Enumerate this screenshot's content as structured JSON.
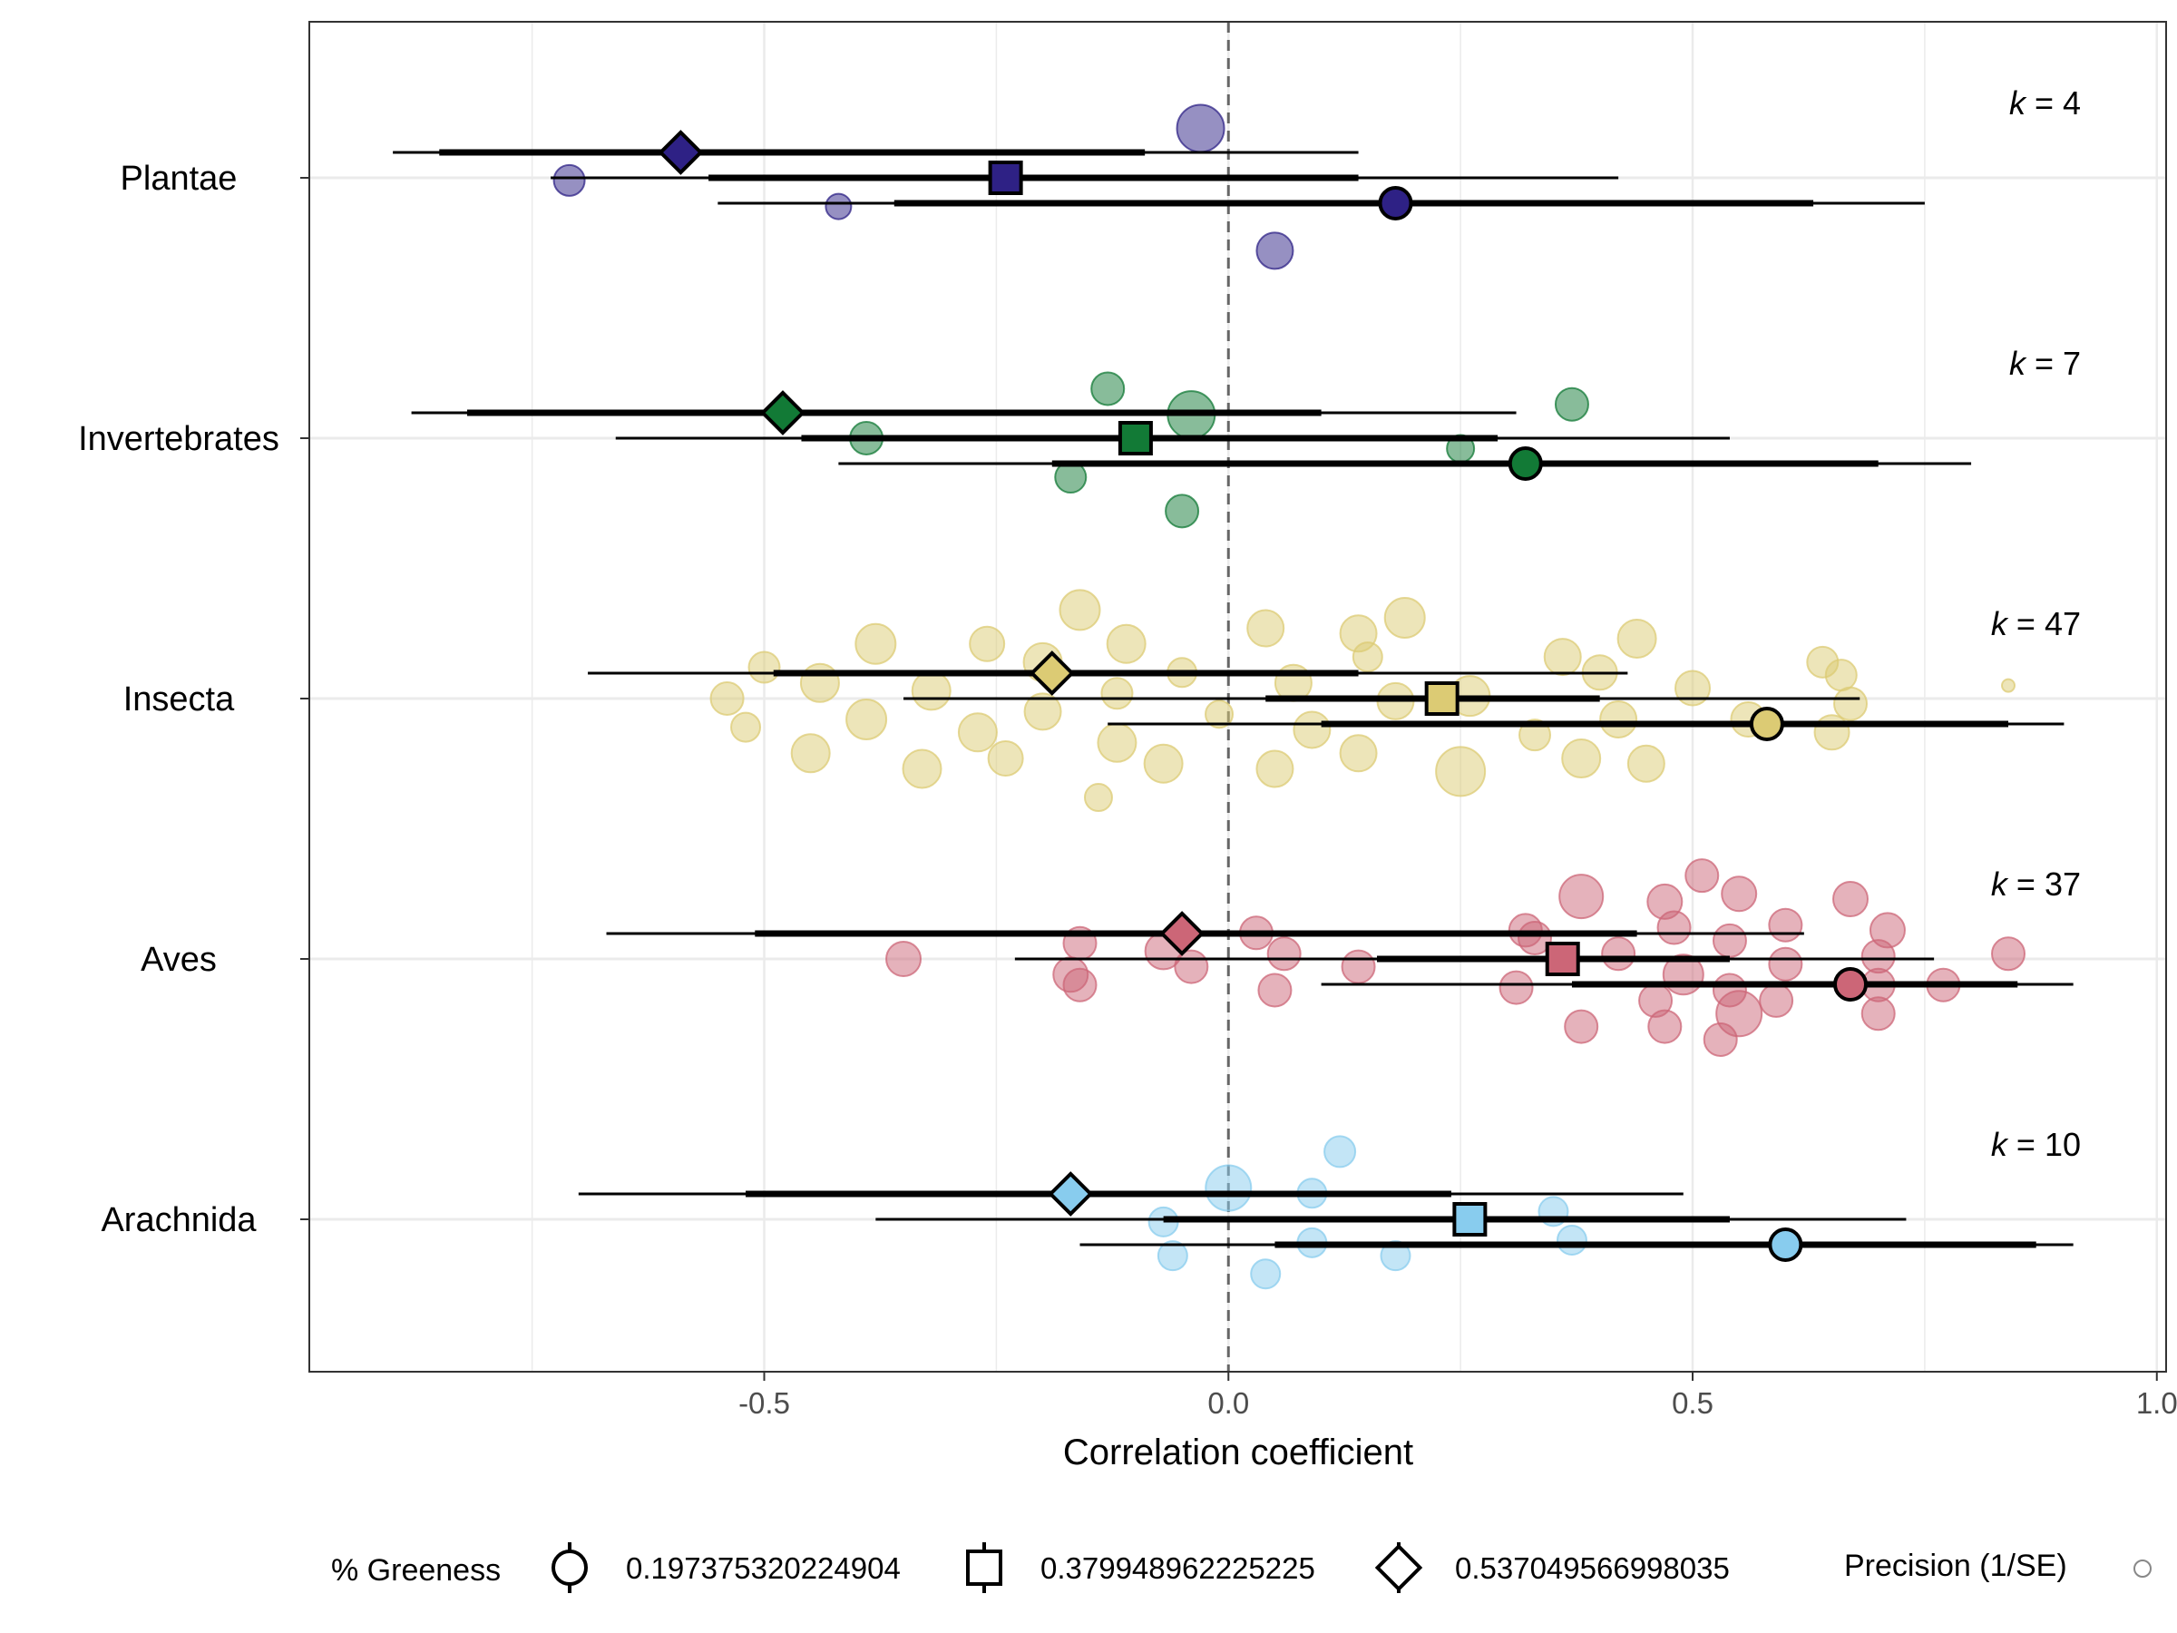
{
  "chart_data": {
    "type": "forest",
    "xlabel": "Correlation coefficient",
    "xlim": [
      -0.99,
      1.01
    ],
    "x_ticks": [
      -0.5,
      0.0,
      0.5,
      1.0
    ],
    "x_tick_labels": [
      "-0.5",
      "0.0",
      "0.5",
      "1.0"
    ],
    "reference_line": 0,
    "grid": true,
    "groups": [
      {
        "name": "Plantae",
        "k_label": "= 4",
        "color": "#2E2185",
        "points": [
          {
            "x": -0.03,
            "offset": 0.19,
            "size": 26
          },
          {
            "x": -0.71,
            "offset": -0.01,
            "size": 17
          },
          {
            "x": -0.42,
            "offset": -0.11,
            "size": 14
          },
          {
            "x": 0.05,
            "offset": -0.28,
            "size": 20
          }
        ],
        "estimates": [
          {
            "level": "0.197375320224904",
            "shape": "circle",
            "x": 0.18,
            "ci95": [
              -0.55,
              0.75
            ],
            "ci_inner": [
              -0.36,
              0.63
            ]
          },
          {
            "level": "0.379948962225225",
            "shape": "square",
            "x": -0.24,
            "ci95": [
              -0.73,
              0.42
            ],
            "ci_inner": [
              -0.56,
              0.14
            ]
          },
          {
            "level": "0.537049566998035",
            "shape": "diamond",
            "x": -0.59,
            "ci95": [
              -0.9,
              0.14
            ],
            "ci_inner": [
              -0.85,
              -0.09
            ]
          }
        ]
      },
      {
        "name": "Invertebrates",
        "k_label": "= 7",
        "color": "#127A36",
        "points": [
          {
            "x": -0.13,
            "offset": 0.19,
            "size": 18
          },
          {
            "x": -0.04,
            "offset": 0.09,
            "size": 26
          },
          {
            "x": 0.37,
            "offset": 0.13,
            "size": 18
          },
          {
            "x": -0.39,
            "offset": 0.0,
            "size": 18
          },
          {
            "x": 0.25,
            "offset": -0.04,
            "size": 15
          },
          {
            "x": -0.17,
            "offset": -0.15,
            "size": 17
          },
          {
            "x": -0.05,
            "offset": -0.28,
            "size": 18
          }
        ],
        "estimates": [
          {
            "level": "0.197375320224904",
            "shape": "circle",
            "x": 0.32,
            "ci95": [
              -0.42,
              0.8
            ],
            "ci_inner": [
              -0.19,
              0.7
            ]
          },
          {
            "level": "0.379948962225225",
            "shape": "square",
            "x": -0.1,
            "ci95": [
              -0.66,
              0.54
            ],
            "ci_inner": [
              -0.46,
              0.29
            ]
          },
          {
            "level": "0.537049566998035",
            "shape": "diamond",
            "x": -0.48,
            "ci95": [
              -0.88,
              0.31
            ],
            "ci_inner": [
              -0.82,
              0.1
            ]
          }
        ]
      },
      {
        "name": "Insecta",
        "k_label": "= 47",
        "color": "#DCCB74",
        "points": [
          {
            "x": -0.16,
            "offset": 0.34,
            "size": 22
          },
          {
            "x": 0.04,
            "offset": 0.27,
            "size": 20
          },
          {
            "x": 0.19,
            "offset": 0.31,
            "size": 22
          },
          {
            "x": -0.38,
            "offset": 0.21,
            "size": 22
          },
          {
            "x": -0.26,
            "offset": 0.21,
            "size": 19
          },
          {
            "x": -0.11,
            "offset": 0.21,
            "size": 21
          },
          {
            "x": 0.14,
            "offset": 0.25,
            "size": 20
          },
          {
            "x": 0.44,
            "offset": 0.23,
            "size": 21
          },
          {
            "x": -0.5,
            "offset": 0.12,
            "size": 17
          },
          {
            "x": -0.2,
            "offset": 0.14,
            "size": 21
          },
          {
            "x": 0.15,
            "offset": 0.16,
            "size": 16
          },
          {
            "x": 0.36,
            "offset": 0.16,
            "size": 20
          },
          {
            "x": -0.05,
            "offset": 0.1,
            "size": 16
          },
          {
            "x": 0.64,
            "offset": 0.14,
            "size": 17
          },
          {
            "x": -0.44,
            "offset": 0.06,
            "size": 21
          },
          {
            "x": -0.32,
            "offset": 0.03,
            "size": 21
          },
          {
            "x": 0.07,
            "offset": 0.06,
            "size": 20
          },
          {
            "x": 0.4,
            "offset": 0.1,
            "size": 19
          },
          {
            "x": 0.66,
            "offset": 0.09,
            "size": 17
          },
          {
            "x": -0.54,
            "offset": 0.0,
            "size": 18
          },
          {
            "x": -0.12,
            "offset": 0.02,
            "size": 17
          },
          {
            "x": 0.18,
            "offset": -0.01,
            "size": 20
          },
          {
            "x": 0.26,
            "offset": 0.01,
            "size": 22
          },
          {
            "x": 0.5,
            "offset": 0.04,
            "size": 19
          },
          {
            "x": 0.67,
            "offset": -0.02,
            "size": 18
          },
          {
            "x": -0.52,
            "offset": -0.11,
            "size": 16
          },
          {
            "x": -0.39,
            "offset": -0.08,
            "size": 22
          },
          {
            "x": -0.2,
            "offset": -0.05,
            "size": 20
          },
          {
            "x": -0.01,
            "offset": -0.06,
            "size": 15
          },
          {
            "x": 0.42,
            "offset": -0.08,
            "size": 20
          },
          {
            "x": 0.56,
            "offset": -0.08,
            "size": 19
          },
          {
            "x": -0.27,
            "offset": -0.13,
            "size": 21
          },
          {
            "x": -0.12,
            "offset": -0.17,
            "size": 21
          },
          {
            "x": 0.09,
            "offset": -0.12,
            "size": 20
          },
          {
            "x": 0.33,
            "offset": -0.14,
            "size": 17
          },
          {
            "x": 0.65,
            "offset": -0.13,
            "size": 19
          },
          {
            "x": -0.45,
            "offset": -0.21,
            "size": 21
          },
          {
            "x": -0.24,
            "offset": -0.23,
            "size": 19
          },
          {
            "x": 0.14,
            "offset": -0.21,
            "size": 20
          },
          {
            "x": 0.38,
            "offset": -0.23,
            "size": 21
          },
          {
            "x": -0.33,
            "offset": -0.27,
            "size": 21
          },
          {
            "x": -0.07,
            "offset": -0.25,
            "size": 21
          },
          {
            "x": 0.05,
            "offset": -0.27,
            "size": 20
          },
          {
            "x": 0.25,
            "offset": -0.28,
            "size": 27
          },
          {
            "x": 0.45,
            "offset": -0.25,
            "size": 20
          },
          {
            "x": -0.14,
            "offset": -0.38,
            "size": 15
          },
          {
            "x": 0.84,
            "offset": 0.05,
            "size": 7
          }
        ],
        "estimates": [
          {
            "level": "0.197375320224904",
            "shape": "circle",
            "x": 0.58,
            "ci95": [
              -0.13,
              0.9
            ],
            "ci_inner": [
              0.1,
              0.84
            ]
          },
          {
            "level": "0.379948962225225",
            "shape": "square",
            "x": 0.23,
            "ci95": [
              -0.35,
              0.68
            ],
            "ci_inner": [
              0.04,
              0.4
            ]
          },
          {
            "level": "0.537049566998035",
            "shape": "diamond",
            "x": -0.19,
            "ci95": [
              -0.69,
              0.43
            ],
            "ci_inner": [
              -0.49,
              0.14
            ]
          }
        ]
      },
      {
        "name": "Aves",
        "k_label": "= 37",
        "color": "#CC6677",
        "points": [
          {
            "x": 0.51,
            "offset": 0.32,
            "size": 18
          },
          {
            "x": 0.38,
            "offset": 0.24,
            "size": 24
          },
          {
            "x": 0.47,
            "offset": 0.22,
            "size": 19
          },
          {
            "x": 0.55,
            "offset": 0.25,
            "size": 19
          },
          {
            "x": 0.67,
            "offset": 0.23,
            "size": 19
          },
          {
            "x": 0.32,
            "offset": 0.11,
            "size": 18
          },
          {
            "x": 0.48,
            "offset": 0.12,
            "size": 18
          },
          {
            "x": 0.6,
            "offset": 0.13,
            "size": 18
          },
          {
            "x": 0.71,
            "offset": 0.11,
            "size": 19
          },
          {
            "x": 0.03,
            "offset": 0.1,
            "size": 18
          },
          {
            "x": -0.16,
            "offset": 0.06,
            "size": 18
          },
          {
            "x": 0.33,
            "offset": 0.08,
            "size": 18
          },
          {
            "x": 0.54,
            "offset": 0.07,
            "size": 18
          },
          {
            "x": -0.35,
            "offset": 0.0,
            "size": 19
          },
          {
            "x": -0.07,
            "offset": 0.03,
            "size": 20
          },
          {
            "x": 0.06,
            "offset": 0.02,
            "size": 18
          },
          {
            "x": 0.42,
            "offset": 0.02,
            "size": 18
          },
          {
            "x": 0.7,
            "offset": 0.01,
            "size": 18
          },
          {
            "x": 0.84,
            "offset": 0.02,
            "size": 18
          },
          {
            "x": -0.04,
            "offset": -0.03,
            "size": 18
          },
          {
            "x": 0.14,
            "offset": -0.03,
            "size": 18
          },
          {
            "x": 0.6,
            "offset": -0.02,
            "size": 18
          },
          {
            "x": -0.17,
            "offset": -0.06,
            "size": 19
          },
          {
            "x": -0.16,
            "offset": -0.1,
            "size": 18
          },
          {
            "x": 0.31,
            "offset": -0.11,
            "size": 18
          },
          {
            "x": 0.49,
            "offset": -0.06,
            "size": 22
          },
          {
            "x": 0.54,
            "offset": -0.12,
            "size": 18
          },
          {
            "x": 0.7,
            "offset": -0.1,
            "size": 18
          },
          {
            "x": 0.77,
            "offset": -0.1,
            "size": 18
          },
          {
            "x": 0.05,
            "offset": -0.12,
            "size": 18
          },
          {
            "x": 0.46,
            "offset": -0.16,
            "size": 18
          },
          {
            "x": 0.55,
            "offset": -0.21,
            "size": 25
          },
          {
            "x": 0.7,
            "offset": -0.21,
            "size": 18
          },
          {
            "x": 0.38,
            "offset": -0.26,
            "size": 18
          },
          {
            "x": 0.47,
            "offset": -0.26,
            "size": 18
          },
          {
            "x": 0.53,
            "offset": -0.31,
            "size": 18
          },
          {
            "x": 0.59,
            "offset": -0.16,
            "size": 18
          }
        ],
        "estimates": [
          {
            "level": "0.197375320224904",
            "shape": "circle",
            "x": 0.67,
            "ci95": [
              0.1,
              0.91
            ],
            "ci_inner": [
              0.37,
              0.85
            ]
          },
          {
            "level": "0.379948962225225",
            "shape": "square",
            "x": 0.36,
            "ci95": [
              -0.23,
              0.76
            ],
            "ci_inner": [
              0.16,
              0.54
            ]
          },
          {
            "level": "0.537049566998035",
            "shape": "diamond",
            "x": -0.05,
            "ci95": [
              -0.67,
              0.62
            ],
            "ci_inner": [
              -0.51,
              0.44
            ]
          }
        ]
      },
      {
        "name": "Arachnida",
        "k_label": "= 10",
        "color": "#88CCEE",
        "points": [
          {
            "x": 0.12,
            "offset": 0.26,
            "size": 17
          },
          {
            "x": 0.0,
            "offset": 0.12,
            "size": 25
          },
          {
            "x": 0.09,
            "offset": 0.1,
            "size": 16
          },
          {
            "x": -0.07,
            "offset": -0.01,
            "size": 16
          },
          {
            "x": 0.35,
            "offset": 0.03,
            "size": 16
          },
          {
            "x": 0.09,
            "offset": -0.09,
            "size": 16
          },
          {
            "x": 0.37,
            "offset": -0.08,
            "size": 16
          },
          {
            "x": -0.06,
            "offset": -0.14,
            "size": 16
          },
          {
            "x": 0.18,
            "offset": -0.14,
            "size": 16
          },
          {
            "x": 0.04,
            "offset": -0.21,
            "size": 16
          }
        ],
        "estimates": [
          {
            "level": "0.197375320224904",
            "shape": "circle",
            "x": 0.6,
            "ci95": [
              -0.16,
              0.91
            ],
            "ci_inner": [
              0.05,
              0.87
            ]
          },
          {
            "level": "0.379948962225225",
            "shape": "square",
            "x": 0.26,
            "ci95": [
              -0.38,
              0.73
            ],
            "ci_inner": [
              -0.07,
              0.54
            ]
          },
          {
            "level": "0.537049566998035",
            "shape": "diamond",
            "x": -0.17,
            "ci95": [
              -0.7,
              0.49
            ],
            "ci_inner": [
              -0.52,
              0.24
            ]
          }
        ]
      }
    ],
    "legend": {
      "placement": "bottom",
      "shape_title": "% Greeness",
      "shape_items": [
        {
          "shape": "circle",
          "label": "0.197375320224904"
        },
        {
          "shape": "square",
          "label": "0.379948962225225"
        },
        {
          "shape": "diamond",
          "label": "0.537049566998035"
        }
      ],
      "size_title": "Precision (1/SE)"
    }
  }
}
